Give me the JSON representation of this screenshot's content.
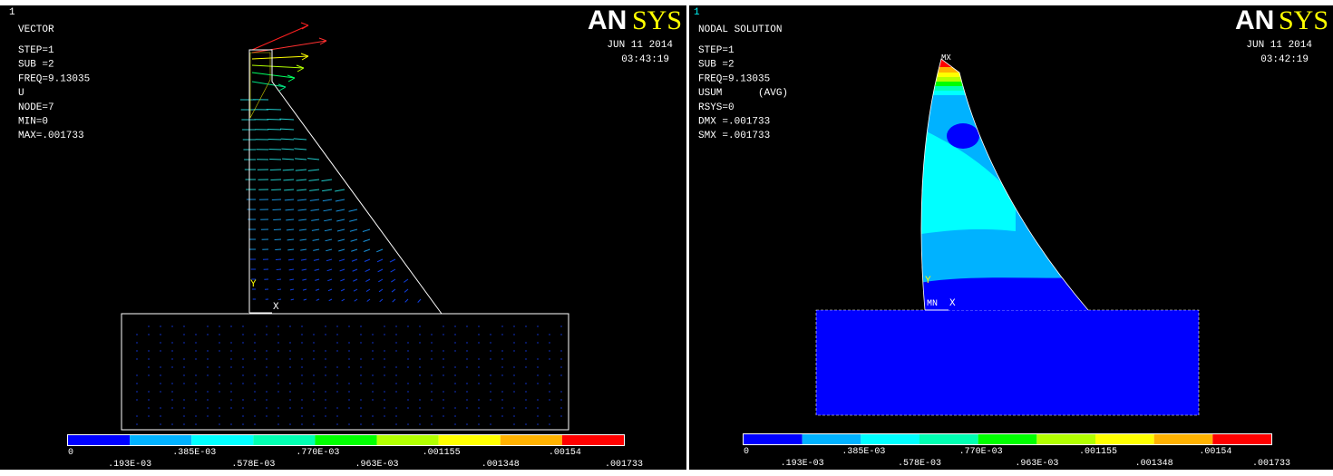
{
  "left": {
    "window": "1",
    "title": "VECTOR",
    "info": [
      "STEP=1",
      "SUB =2",
      "FREQ=9.13035",
      "U",
      "NODE=7",
      "MIN=0",
      "MAX=.001733"
    ],
    "date": "JUN 11 2014",
    "time": "03:43:19",
    "logo": {
      "a": "AN",
      "b": "SYS"
    },
    "legend": [
      "0",
      ".193E-03",
      ".385E-03",
      ".578E-03",
      ".770E-03",
      ".963E-03",
      ".001155",
      ".001348",
      ".00154",
      ".001733"
    ],
    "axes": {
      "x": "X",
      "y": "Y"
    }
  },
  "right": {
    "window": "1",
    "title": "NODAL SOLUTION",
    "info": [
      "STEP=1",
      "SUB =2",
      "FREQ=9.13035",
      "USUM      (AVG)",
      "RSYS=0",
      "DMX =.001733",
      "SMX =.001733"
    ],
    "date": "JUN 11 2014",
    "time": "03:42:19",
    "logo": {
      "a": "AN",
      "b": "SYS"
    },
    "legend": [
      "0",
      ".193E-03",
      ".385E-03",
      ".578E-03",
      ".770E-03",
      ".963E-03",
      ".001155",
      ".001348",
      ".00154",
      ".001733"
    ],
    "axes": {
      "x": "X",
      "y": "Y"
    },
    "markers": {
      "max": "MX",
      "min": "MN"
    }
  }
}
